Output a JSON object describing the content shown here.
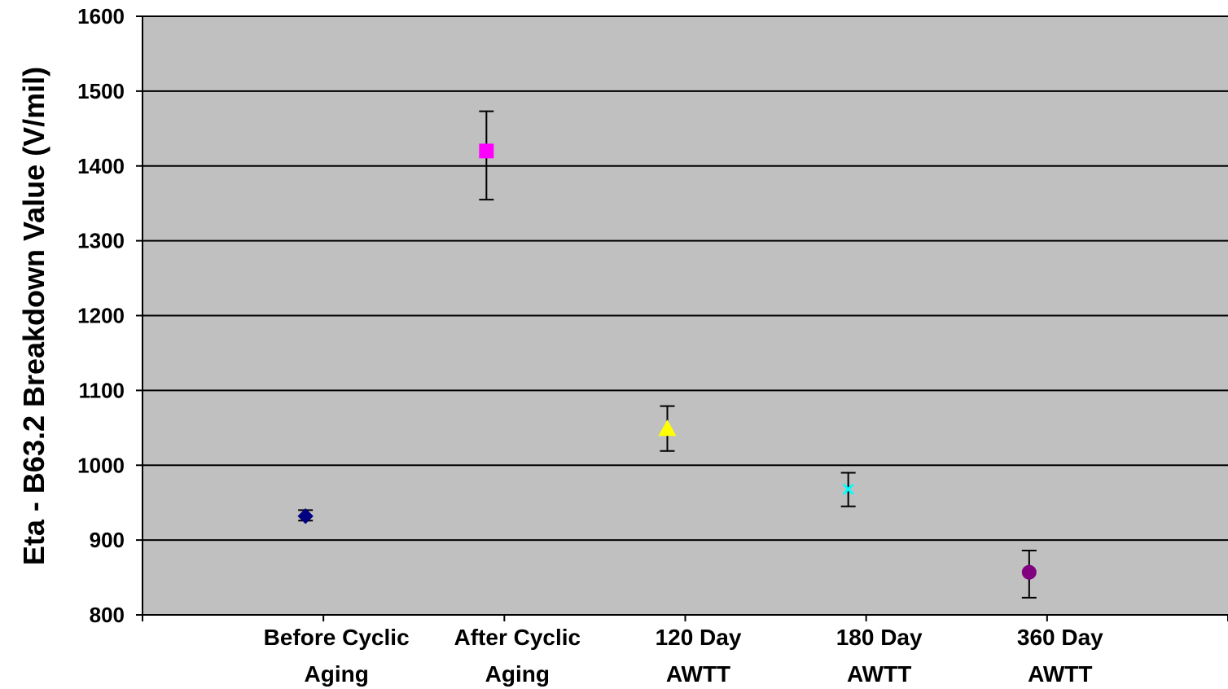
{
  "chart_data": {
    "type": "scatter",
    "title": "",
    "ylabel": "Eta - B63.2 Breakdown  Value (V/mil)",
    "xlabel": "",
    "ylim": [
      800,
      1600
    ],
    "yticks": [
      800,
      900,
      1000,
      1100,
      1200,
      1300,
      1400,
      1500,
      1600
    ],
    "grid": "horizontal",
    "legend": "none",
    "background_color": "#c0c0c0",
    "points": [
      {
        "category": [
          "Before Cyclic",
          "Aging"
        ],
        "y": 932,
        "err_low": 926,
        "err_high": 940,
        "marker": "diamond",
        "color": "#000080"
      },
      {
        "category": [
          "After Cyclic",
          "Aging"
        ],
        "y": 1420,
        "err_low": 1355,
        "err_high": 1473,
        "marker": "square",
        "color": "#ff00ff"
      },
      {
        "category": [
          "120 Day",
          "AWTT"
        ],
        "y": 1049,
        "err_low": 1019,
        "err_high": 1079,
        "marker": "triangle",
        "color": "#ffff00"
      },
      {
        "category": [
          "180 Day",
          "AWTT"
        ],
        "y": 968,
        "err_low": 945,
        "err_high": 990,
        "marker": "x",
        "color": "#00ffff"
      },
      {
        "category": [
          "360 Day",
          "AWTT"
        ],
        "y": 857,
        "err_low": 823,
        "err_high": 886,
        "marker": "circle",
        "color": "#800080"
      }
    ]
  }
}
